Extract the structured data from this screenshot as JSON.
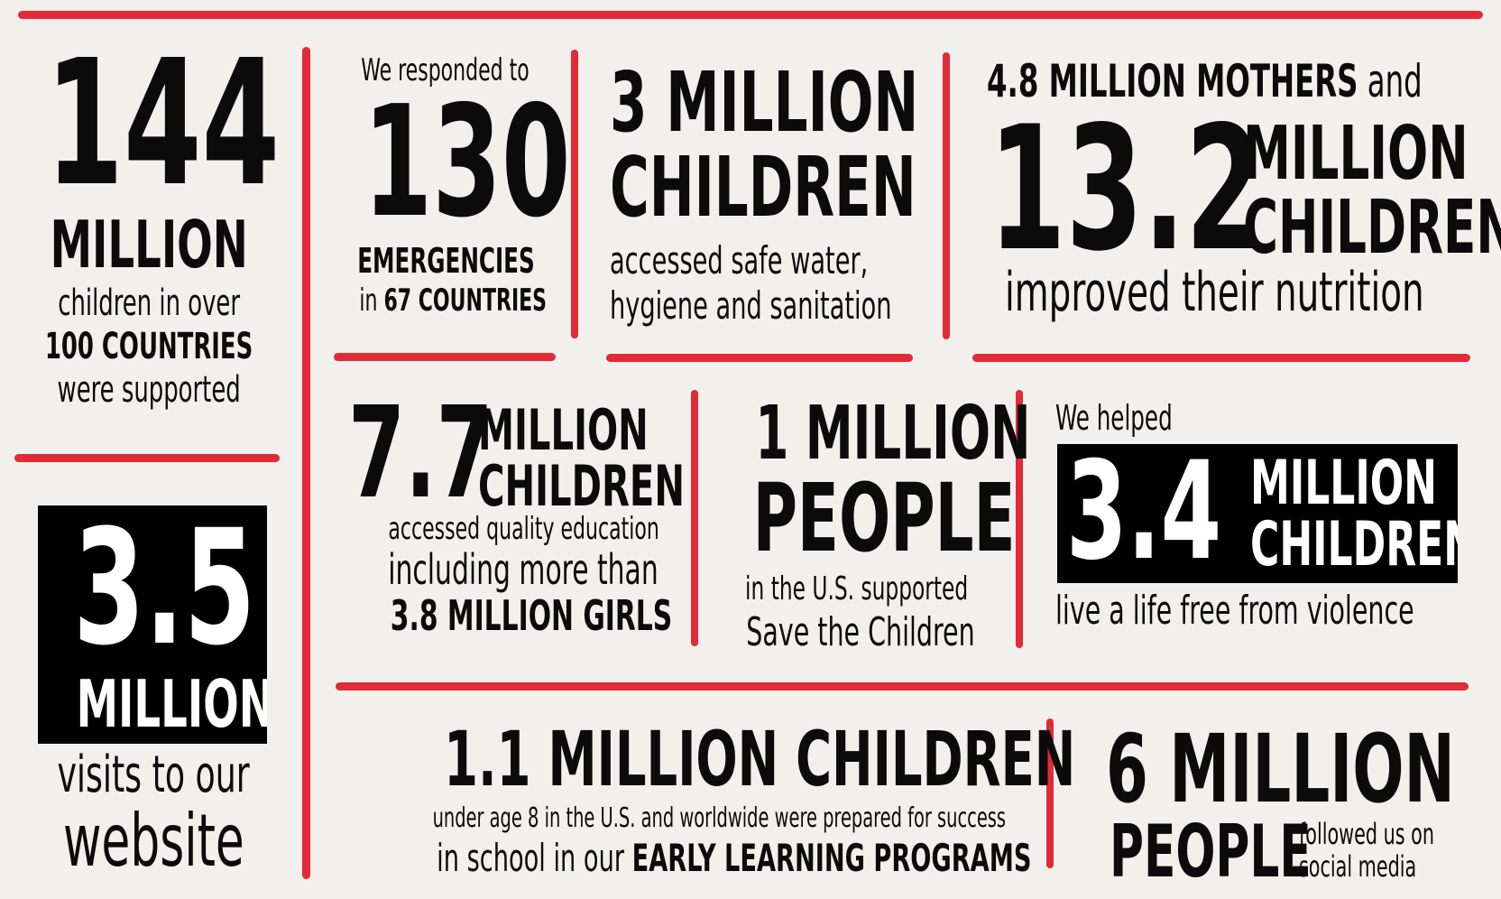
{
  "col1": {
    "big": "144",
    "million": "MILLION",
    "l1": "children in over",
    "l2": "100 COUNTRIES",
    "l3": "were supported"
  },
  "website": {
    "big": "3.5",
    "million": "MILLION",
    "l1": "visits to our",
    "l2": "website"
  },
  "emergencies": {
    "intro": "We responded to",
    "big": "130",
    "l1": "EMERGENCIES",
    "l2_prefix": "in ",
    "l2_bold": "67 COUNTRIES"
  },
  "water": {
    "l1": "3 MILLION",
    "l2": "CHILDREN",
    "l3": "accessed safe water,",
    "l4": "hygiene and sanitation"
  },
  "nutrition": {
    "top_bold": "4.8 MILLION MOTHERS",
    "top_and": " and",
    "big": "13.2",
    "m1": "MILLION",
    "m2": "CHILDREN",
    "bottom": "improved their nutrition"
  },
  "education": {
    "big": "7.7",
    "m1": "MILLION",
    "m2": "CHILDREN",
    "l1": "accessed quality education",
    "l2": "including more than",
    "l3": "3.8 MILLION GIRLS"
  },
  "people_us": {
    "l1": "1 MILLION",
    "l2": "PEOPLE",
    "l3": "in the U.S. supported",
    "l4": "Save the Children"
  },
  "violence": {
    "intro": "We helped",
    "big": "3.4",
    "m1": "MILLION",
    "m2": "CHILDREN",
    "bottom": "live a life free from violence"
  },
  "early_learning": {
    "headline": "1.1 MILLION CHILDREN",
    "l1": "under age 8 in the U.S. and worldwide were prepared for success",
    "l2_prefix": "in school in our ",
    "l2_bold": "EARLY LEARNING PROGRAMS"
  },
  "social": {
    "l1": "6 MILLION",
    "l2": "PEOPLE",
    "side1": "followed us on",
    "side2": "social media"
  },
  "colors": {
    "accent_red": "#e12b36",
    "background": "#f2f0ed",
    "text": "#0b0b0b"
  }
}
